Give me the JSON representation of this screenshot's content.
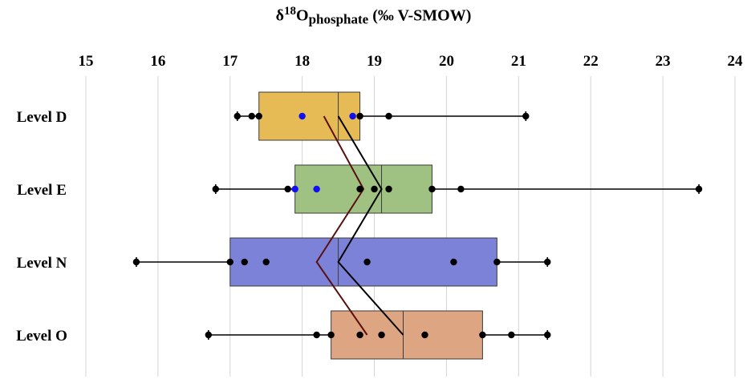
{
  "chart_data": {
    "type": "box",
    "title": {
      "prefix": "δ",
      "sup": "18",
      "main": "O",
      "sub": "phosphate",
      "unit": " (‰ V-SMOW)"
    },
    "x_ticks": [
      "15",
      "16",
      "17",
      "18",
      "19",
      "20",
      "21",
      "22",
      "23",
      "24"
    ],
    "xlim": [
      15,
      24
    ],
    "grid": "vertical",
    "categories": [
      "Level D",
      "Level E",
      "Level N",
      "Level O"
    ],
    "boxes": [
      {
        "category": "Level D",
        "color": "#e6bb55",
        "whisker_low": 17.1,
        "q1": 17.4,
        "median": 18.5,
        "q3": 18.8,
        "whisker_high": 21.1
      },
      {
        "category": "Level E",
        "color": "#9fc283",
        "whisker_low": 16.8,
        "q1": 17.9,
        "median": 19.1,
        "q3": 19.8,
        "whisker_high": 23.5
      },
      {
        "category": "Level N",
        "color": "#7d82d9",
        "whisker_low": 15.7,
        "q1": 17.0,
        "median": 18.5,
        "q3": 20.7,
        "whisker_high": 21.4
      },
      {
        "category": "Level O",
        "color": "#dea583",
        "whisker_low": 16.7,
        "q1": 18.4,
        "median": 19.4,
        "q3": 20.5,
        "whisker_high": 21.4
      }
    ],
    "points": [
      {
        "category": "Level D",
        "black": [
          17.1,
          17.3,
          17.4,
          18.8,
          19.2,
          21.1
        ],
        "blue": [
          18.0,
          18.7
        ]
      },
      {
        "category": "Level E",
        "black": [
          16.8,
          17.8,
          18.8,
          19.0,
          19.2,
          19.8,
          20.2,
          23.5
        ],
        "blue": [
          17.9,
          18.2
        ]
      },
      {
        "category": "Level N",
        "black": [
          15.7,
          17.0,
          17.2,
          17.5,
          18.9,
          20.1,
          20.7,
          21.4
        ],
        "blue": []
      },
      {
        "category": "Level O",
        "black": [
          16.7,
          18.2,
          18.4,
          18.8,
          19.1,
          19.7,
          20.5,
          20.9,
          21.4
        ],
        "blue": []
      }
    ],
    "lines": [
      {
        "color": "#000000",
        "values": [
          18.5,
          19.1,
          18.5,
          19.4
        ]
      },
      {
        "color": "#5a1010",
        "values": [
          18.3,
          18.85,
          18.2,
          18.9
        ]
      }
    ]
  }
}
